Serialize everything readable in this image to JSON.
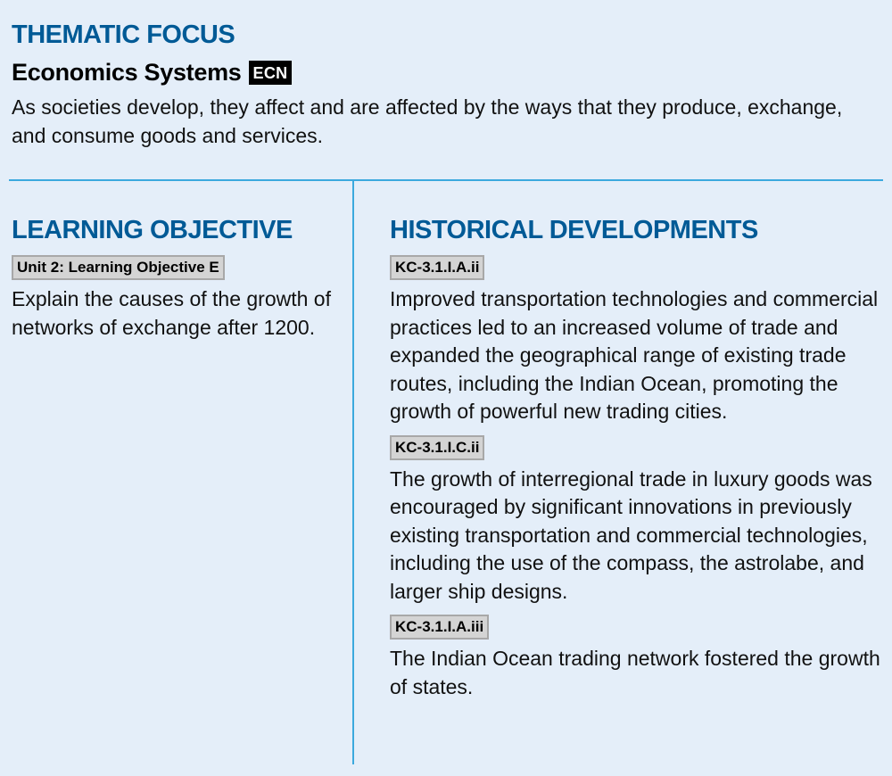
{
  "thematic_focus": {
    "heading": "THEMATIC FOCUS",
    "system_name": "Economics Systems",
    "system_badge": "ECN",
    "description": "As societies develop, they affect and are affected by the ways that they produce, exchange, and consume goods and services."
  },
  "learning_objective": {
    "heading": "LEARNING OBJECTIVE",
    "tag": "Unit 2: Learning Objective E",
    "text": "Explain the causes of the growth of networks of exchange after 1200."
  },
  "historical_developments": {
    "heading": "HISTORICAL DEVELOPMENTS",
    "items": [
      {
        "tag": "KC-3.1.I.A.ii",
        "text": "Improved transportation technologies and commercial practices led to an increased volume of trade and expanded the geographical range of existing trade routes, including the Indian Ocean, promoting the growth of powerful new trading cities."
      },
      {
        "tag": "KC-3.1.I.C.ii",
        "text": "The growth of interregional trade in luxury goods was encouraged by significant innovations in previously existing transportation and commercial technologies, including the use of the compass, the astrolabe, and larger ship designs."
      },
      {
        "tag": "KC-3.1.I.A.iii",
        "text": "The Indian Ocean trading network fostered the growth of states."
      }
    ]
  },
  "colors": {
    "background": "#e4eef9",
    "heading_blue": "#005a96",
    "divider_blue": "#3ba9de",
    "tag_gray": "#d4d4d4"
  }
}
